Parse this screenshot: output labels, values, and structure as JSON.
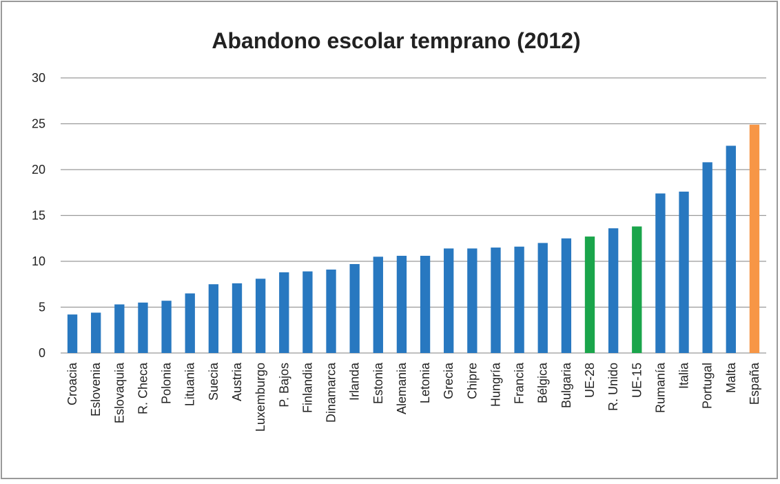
{
  "chart_data": {
    "type": "bar",
    "title": "Abandono escolar temprano (2012)",
    "categories": [
      "Croacia",
      "Eslovenia",
      "Eslovaquia",
      "R. Checa",
      "Polonia",
      "Lituania",
      "Suecia",
      "Austria",
      "Luxemburgo",
      "P. Bajos",
      "Finlandia",
      "Dinamarca",
      "Irlanda",
      "Estonia",
      "Alemania",
      "Letonia",
      "Grecia",
      "Chipre",
      "Hungría",
      "Francia",
      "Bélgica",
      "Bulgaria",
      "UE-28",
      "R. Unido",
      "UE-15",
      "Rumanía",
      "Italia",
      "Portugal",
      "Malta",
      "España"
    ],
    "values": [
      4.2,
      4.4,
      5.3,
      5.5,
      5.7,
      6.5,
      7.5,
      7.6,
      8.1,
      8.8,
      8.9,
      9.1,
      9.7,
      10.5,
      10.6,
      10.6,
      11.4,
      11.4,
      11.5,
      11.6,
      12.0,
      12.5,
      12.7,
      13.6,
      13.8,
      17.4,
      17.6,
      20.8,
      22.6,
      24.9
    ],
    "colors": [
      "#2878c0",
      "#2878c0",
      "#2878c0",
      "#2878c0",
      "#2878c0",
      "#2878c0",
      "#2878c0",
      "#2878c0",
      "#2878c0",
      "#2878c0",
      "#2878c0",
      "#2878c0",
      "#2878c0",
      "#2878c0",
      "#2878c0",
      "#2878c0",
      "#2878c0",
      "#2878c0",
      "#2878c0",
      "#2878c0",
      "#2878c0",
      "#2878c0",
      "#1aa54b",
      "#2878c0",
      "#1aa54b",
      "#2878c0",
      "#2878c0",
      "#2878c0",
      "#2878c0",
      "#f79646"
    ],
    "ylim": [
      0,
      30
    ],
    "yticks": [
      0,
      5,
      10,
      15,
      20,
      25,
      30
    ],
    "grid": true
  }
}
